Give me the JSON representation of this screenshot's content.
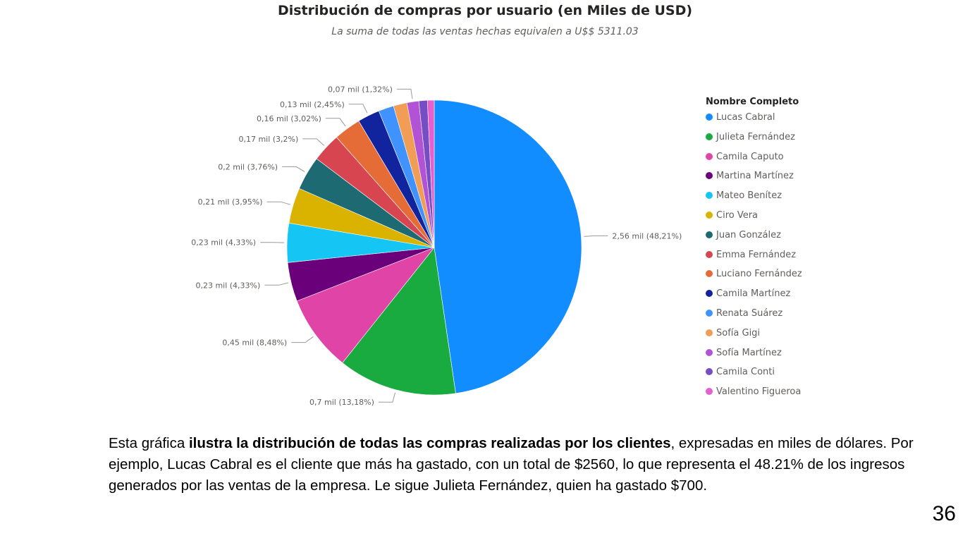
{
  "chart_data": {
    "type": "pie",
    "title": "Distribución de compras por usuario (en Miles de USD)",
    "subtitle": "La suma de todas las ventas hechas equivalen a U$$ 5311.03",
    "legend_title": "Nombre Completo",
    "legend_position": "right",
    "slices": [
      {
        "name": "Lucas Cabral",
        "value": 2.56,
        "label": "2,56 mil (48,21%)",
        "color": "#118dff"
      },
      {
        "name": "Julieta Fernández",
        "value": 0.7,
        "label": "0,7 mil (13,18%)",
        "color": "#1aab40"
      },
      {
        "name": "Camila Caputo",
        "value": 0.45,
        "label": "0,45 mil (8,48%)",
        "color": "#e044a7"
      },
      {
        "name": "Martina Martínez",
        "value": 0.23,
        "label": "0,23 mil (4,33%)",
        "color": "#6b007b"
      },
      {
        "name": "Mateo Benítez",
        "value": 0.23,
        "label": "0,23 mil (4,33%)",
        "color": "#15c6f4"
      },
      {
        "name": "Ciro Vera",
        "value": 0.21,
        "label": "0,21 mil (3,95%)",
        "color": "#d9b300"
      },
      {
        "name": "Juan González",
        "value": 0.2,
        "label": "0,2 mil (3,76%)",
        "color": "#1e6a72"
      },
      {
        "name": "Emma Fernández",
        "value": 0.17,
        "label": "0,17 mil (3,2%)",
        "color": "#d64550"
      },
      {
        "name": "Luciano Fernández",
        "value": 0.16,
        "label": "0,16 mil (3,02%)",
        "color": "#e66c37"
      },
      {
        "name": "Camila Martínez",
        "value": 0.13,
        "label": "0,13 mil (2,45%)",
        "color": "#12239e"
      },
      {
        "name": "Renata Suárez",
        "value": 0.09,
        "label": "",
        "color": "#4092ff"
      },
      {
        "name": "Sofía Gigi",
        "value": 0.08,
        "label": "",
        "color": "#f29d56"
      },
      {
        "name": "Sofía Martínez",
        "value": 0.07,
        "label": "0,07 mil (1,32%)",
        "color": "#b253d6"
      },
      {
        "name": "Camila Conti",
        "value": 0.05,
        "label": "",
        "color": "#744ec2"
      },
      {
        "name": "Valentino Figueroa",
        "value": 0.04,
        "label": "",
        "color": "#e65fcf"
      }
    ]
  },
  "description": {
    "intro": "Esta gráfica ",
    "bold": "ilustra la distribución de todas las compras realizadas por los clientes",
    "rest": ", expresadas en miles de dólares. Por ejemplo, Lucas Cabral es el cliente que más ha gastado, con un total de $2560, lo que representa el 48.21% de los ingresos generados por las ventas de la empresa. Le sigue Julieta Fernández, quien ha gastado $700."
  },
  "page_number": "36"
}
